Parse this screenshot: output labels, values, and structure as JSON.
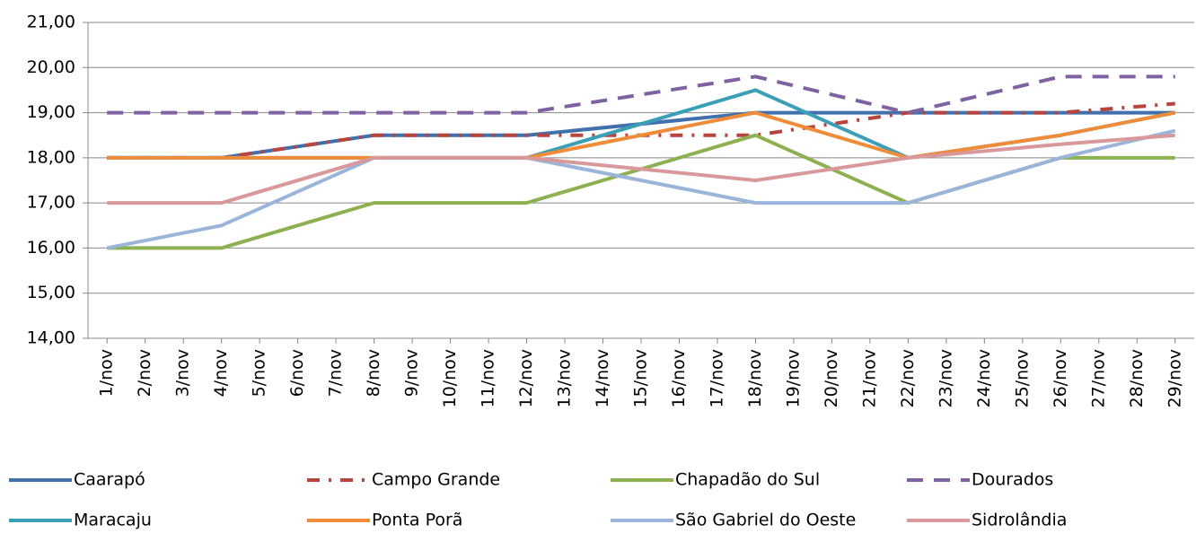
{
  "chart_data": {
    "type": "line",
    "x": [
      1,
      4,
      8,
      12,
      18,
      22,
      26,
      29
    ],
    "xlim": [
      0.5,
      29.5
    ],
    "xticks": [
      {
        "value": 1,
        "label": "1/nov"
      },
      {
        "value": 2,
        "label": "2/nov"
      },
      {
        "value": 3,
        "label": "3/nov"
      },
      {
        "value": 4,
        "label": "4/nov"
      },
      {
        "value": 5,
        "label": "5/nov"
      },
      {
        "value": 6,
        "label": "6/nov"
      },
      {
        "value": 7,
        "label": "7/nov"
      },
      {
        "value": 8,
        "label": "8/nov"
      },
      {
        "value": 9,
        "label": "9/nov"
      },
      {
        "value": 10,
        "label": "10/nov"
      },
      {
        "value": 11,
        "label": "11/nov"
      },
      {
        "value": 12,
        "label": "12/nov"
      },
      {
        "value": 13,
        "label": "13/nov"
      },
      {
        "value": 14,
        "label": "14/nov"
      },
      {
        "value": 15,
        "label": "15/nov"
      },
      {
        "value": 16,
        "label": "16/nov"
      },
      {
        "value": 17,
        "label": "17/nov"
      },
      {
        "value": 18,
        "label": "18/nov"
      },
      {
        "value": 19,
        "label": "19/nov"
      },
      {
        "value": 20,
        "label": "20/nov"
      },
      {
        "value": 21,
        "label": "21/nov"
      },
      {
        "value": 22,
        "label": "22/nov"
      },
      {
        "value": 23,
        "label": "23/nov"
      },
      {
        "value": 24,
        "label": "24/nov"
      },
      {
        "value": 25,
        "label": "25/nov"
      },
      {
        "value": 26,
        "label": "26/nov"
      },
      {
        "value": 27,
        "label": "27/nov"
      },
      {
        "value": 28,
        "label": "28/nov"
      },
      {
        "value": 29,
        "label": "29/nov"
      }
    ],
    "ylim": [
      14,
      21
    ],
    "yticks": [
      {
        "value": 14,
        "label": "14,00"
      },
      {
        "value": 15,
        "label": "15,00"
      },
      {
        "value": 16,
        "label": "16,00"
      },
      {
        "value": 17,
        "label": "17,00"
      },
      {
        "value": 18,
        "label": "18,00"
      },
      {
        "value": 19,
        "label": "19,00"
      },
      {
        "value": 20,
        "label": "20,00"
      },
      {
        "value": 21,
        "label": "21,00"
      }
    ],
    "grid": true,
    "legend": "bottom",
    "series": [
      {
        "name": "Caarapó",
        "color": "#4170ad",
        "dash": "solid",
        "values": [
          18,
          18,
          18.5,
          18.5,
          19,
          19,
          19,
          19
        ]
      },
      {
        "name": "Campo Grande",
        "color": "#b8443e",
        "dash": "dash-dot",
        "values": [
          18,
          18,
          18.5,
          18.5,
          18.5,
          19,
          19,
          19.2
        ]
      },
      {
        "name": "Chapadão do Sul",
        "color": "#8db050",
        "dash": "solid",
        "values": [
          16,
          16,
          17,
          17,
          18.5,
          17,
          18,
          18
        ]
      },
      {
        "name": "Dourados",
        "color": "#7e62a1",
        "dash": "dash",
        "values": [
          19,
          19,
          19,
          19,
          19.8,
          19,
          19.8,
          19.8
        ]
      },
      {
        "name": "Maracaju",
        "color": "#3c9fb8",
        "dash": "solid",
        "values": [
          18,
          18,
          18,
          18,
          19.5,
          18,
          18.5,
          19
        ]
      },
      {
        "name": "Ponta Porã",
        "color": "#ee8c3a",
        "dash": "solid",
        "values": [
          18,
          18,
          18,
          18,
          19,
          18,
          18.5,
          19
        ]
      },
      {
        "name": "São Gabriel do Oeste",
        "color": "#9bb5da",
        "dash": "solid",
        "values": [
          16,
          16.5,
          18,
          18,
          17,
          17,
          18,
          18.6
        ]
      },
      {
        "name": "Sidrolândia",
        "color": "#d9989a",
        "dash": "solid",
        "values": [
          17,
          17,
          18,
          18,
          17.5,
          18,
          18.3,
          18.5
        ]
      }
    ]
  }
}
